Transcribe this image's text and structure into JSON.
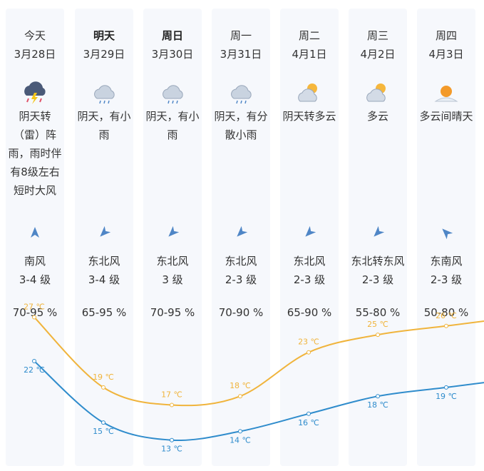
{
  "colors": {
    "high": "#f0b43c",
    "low": "#2f8ccc",
    "column_bg": "#f6f8fc",
    "arrow": "#4f86c6"
  },
  "days": [
    {
      "day": "今天",
      "date": "3月28日",
      "bold": false,
      "icon": "thunderstorm-icon",
      "desc": "阴天转（雷）阵雨，雨时伴有8级左右短时大风",
      "wind": "南风",
      "wind_level": "3-4 级",
      "humidity": "70-95 %",
      "wind_dir_deg": 0,
      "high": "27 ℃",
      "low": "22 ℃",
      "high_val": 27,
      "low_val": 22
    },
    {
      "day": "明天",
      "date": "3月29日",
      "bold": true,
      "icon": "light-rain-icon",
      "desc": "阴天，有小雨",
      "wind": "东北风",
      "wind_level": "3-4 级",
      "humidity": "65-95 %",
      "wind_dir_deg": 225,
      "high": "19 ℃",
      "low": "15 ℃",
      "high_val": 19,
      "low_val": 15
    },
    {
      "day": "周日",
      "date": "3月30日",
      "bold": true,
      "icon": "light-rain-icon",
      "desc": "阴天，有小雨",
      "wind": "东北风",
      "wind_level": "3 级",
      "humidity": "70-95 %",
      "wind_dir_deg": 225,
      "high": "17 ℃",
      "low": "13 ℃",
      "high_val": 17,
      "low_val": 13
    },
    {
      "day": "周一",
      "date": "3月31日",
      "bold": false,
      "icon": "light-rain-icon",
      "desc": "阴天，有分散小雨",
      "wind": "东北风",
      "wind_level": "2-3 级",
      "humidity": "70-90 %",
      "wind_dir_deg": 225,
      "high": "18 ℃",
      "low": "14 ℃",
      "high_val": 18,
      "low_val": 14
    },
    {
      "day": "周二",
      "date": "4月1日",
      "bold": false,
      "icon": "partly-cloudy-icon",
      "desc": "阴天转多云",
      "wind": "东北风",
      "wind_level": "2-3 级",
      "humidity": "65-90 %",
      "wind_dir_deg": 225,
      "high": "23 ℃",
      "low": "16 ℃",
      "high_val": 23,
      "low_val": 16
    },
    {
      "day": "周三",
      "date": "4月2日",
      "bold": false,
      "icon": "partly-cloudy-icon",
      "desc": "多云",
      "wind": "东北转东风",
      "wind_level": "2-3 级",
      "humidity": "55-80 %",
      "wind_dir_deg": 225,
      "high": "25 ℃",
      "low": "18 ℃",
      "high_val": 25,
      "low_val": 18
    },
    {
      "day": "周四",
      "date": "4月3日",
      "bold": false,
      "icon": "sunny-cloudy-icon",
      "desc": "多云间晴天",
      "wind": "东南风",
      "wind_level": "2-3 级",
      "humidity": "50-80 %",
      "wind_dir_deg": 315,
      "high": "26 ℃",
      "low": "19 ℃",
      "high_val": 26,
      "low_val": 19
    }
  ]
}
